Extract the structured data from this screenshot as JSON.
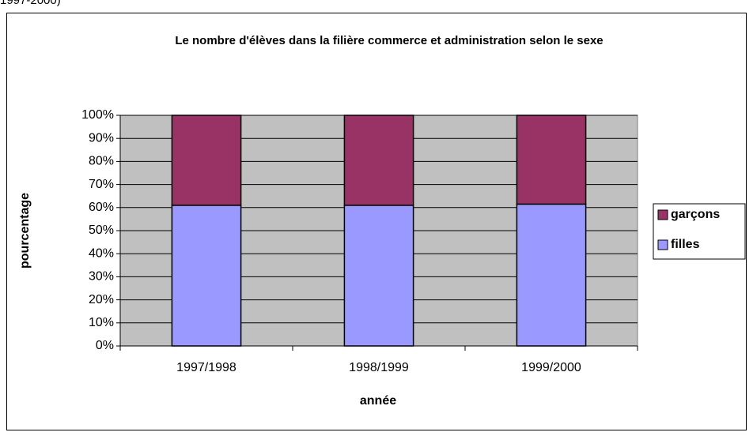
{
  "caption": "1997-2000)",
  "chart_data": {
    "type": "stacked_bar",
    "title": "Le nombre d'élèves dans la filière commerce et administration selon le sexe",
    "x_label": "année",
    "y_label": "pourcentage",
    "categories": [
      "1997/1998",
      "1998/1999",
      "1999/2000"
    ],
    "series": [
      {
        "name": "filles",
        "color": "#9999ff",
        "values": [
          61,
          61,
          61.5
        ]
      },
      {
        "name": "garçons",
        "color": "#993366",
        "values": [
          39,
          39,
          38.5
        ]
      }
    ],
    "ylim": [
      0,
      100
    ],
    "yticks": [
      {
        "value": 0,
        "label": "0%"
      },
      {
        "value": 10,
        "label": "10%"
      },
      {
        "value": 20,
        "label": "20%"
      },
      {
        "value": 30,
        "label": "30%"
      },
      {
        "value": 40,
        "label": "40%"
      },
      {
        "value": 50,
        "label": "50%"
      },
      {
        "value": 60,
        "label": "60%"
      },
      {
        "value": 70,
        "label": "70%"
      },
      {
        "value": 80,
        "label": "80%"
      },
      {
        "value": 90,
        "label": "90%"
      },
      {
        "value": 100,
        "label": "100%"
      }
    ],
    "grid": true,
    "plot_background": "#c0c0c0",
    "legend": "right"
  }
}
